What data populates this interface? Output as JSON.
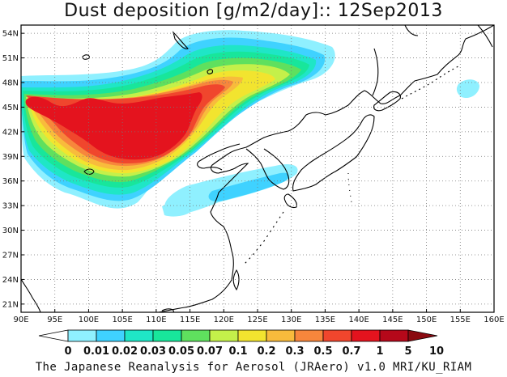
{
  "title": "Dust deposition [g/m2/day]:: 12Sep2013",
  "credit": "The Japanese Reanalysis for Aerosol (JRAero) v1.0 MRI/KU_RIAM",
  "map": {
    "lon_range": [
      90,
      160
    ],
    "lat_range": [
      20,
      55
    ],
    "lon_ticks": [
      "90E",
      "95E",
      "100E",
      "105E",
      "110E",
      "115E",
      "120E",
      "125E",
      "130E",
      "135E",
      "140E",
      "145E",
      "150E",
      "155E",
      "160E"
    ],
    "lat_ticks": [
      "21N",
      "24N",
      "27N",
      "30N",
      "33N",
      "36N",
      "39N",
      "42N",
      "45N",
      "48N",
      "51N",
      "54N"
    ]
  },
  "colorbar": {
    "labels": [
      "0",
      "0.01",
      "0.02",
      "0.03",
      "0.05",
      "0.07",
      "0.1",
      "0.2",
      "0.3",
      "0.5",
      "0.7",
      "1",
      "5",
      "10"
    ],
    "colors": [
      "#ffffff",
      "#8ff0ff",
      "#3fd2ff",
      "#1fe6c6",
      "#18e69b",
      "#5fe05e",
      "#c4f04a",
      "#f2e42f",
      "#f8bb3c",
      "#f7863c",
      "#f0462d",
      "#e4131e",
      "#b5081a",
      "#8a0a10"
    ]
  }
}
